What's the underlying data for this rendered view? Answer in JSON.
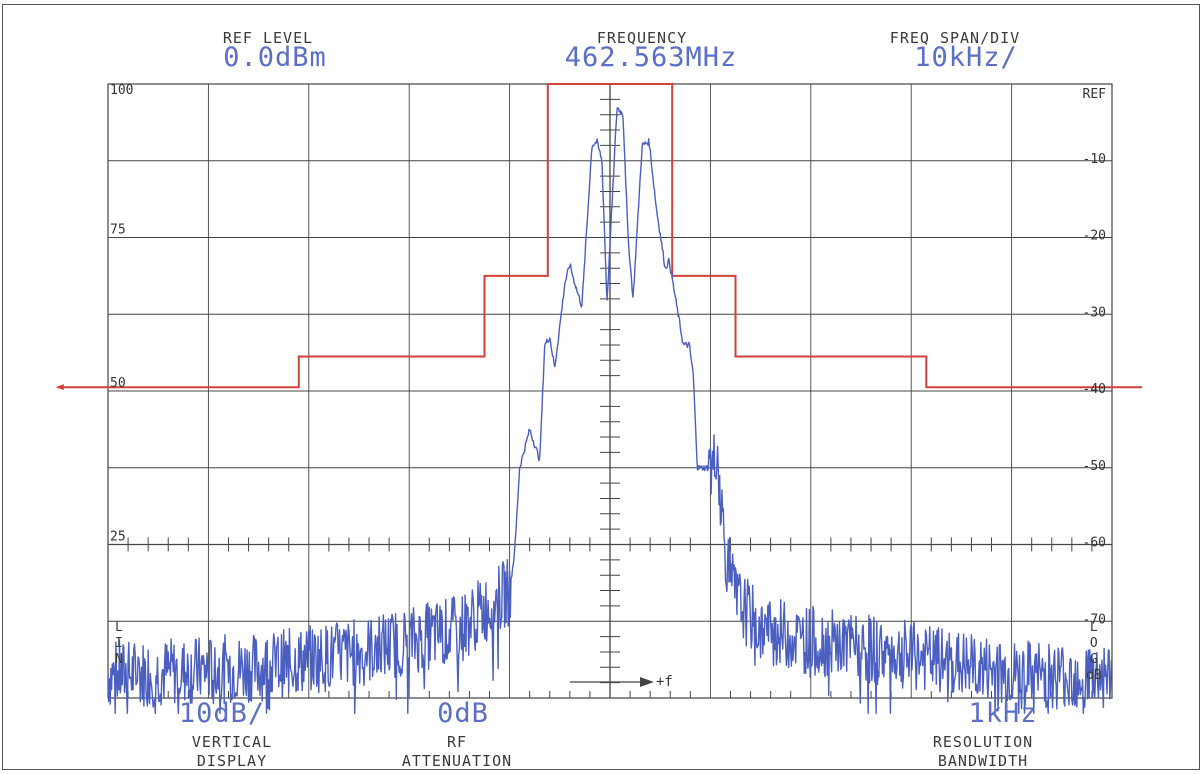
{
  "header": {
    "ref_level_label": "REF LEVEL",
    "ref_level_value": "0.0dBm",
    "frequency_label": "FREQUENCY",
    "frequency_value": "462.563MHz",
    "span_label": "FREQ SPAN/DIV",
    "span_value": "10kHz/"
  },
  "footer": {
    "vertical_value": "10dB/",
    "vertical_label_1": "VERTICAL",
    "vertical_label_2": "DISPLAY",
    "rf_value": "0dB",
    "rf_label_1": "RF",
    "rf_label_2": "ATTENUATION",
    "rbw_value": "1kHz",
    "rbw_label_1": "RESOLUTION",
    "rbw_label_2": "BANDWIDTH"
  },
  "side_markers": {
    "left_lin": [
      "L",
      "I",
      "N"
    ],
    "right_log": [
      "L",
      "O",
      "G",
      "dB"
    ]
  },
  "freq_axis_label": "+f",
  "colors": {
    "trace": "#4a5fc0",
    "mask": "#d2403c",
    "grid": "#444444",
    "text_value": "#5b6ec8"
  },
  "chart_data": {
    "type": "line",
    "title": "",
    "x_units": "kHz offset from center frequency (10 kHz/div)",
    "xlim": [
      -50,
      50
    ],
    "y_right": {
      "tick_labels": [
        "REF",
        "-10",
        "-20",
        "-30",
        "-40",
        "-50",
        "-60",
        "-70"
      ],
      "ylim": [
        -80,
        0
      ]
    },
    "y_left": {
      "tick_labels": [
        "100",
        "75",
        "50",
        "25"
      ],
      "ylim": [
        0,
        100
      ]
    },
    "grid": true,
    "series": [
      {
        "kind": "mask",
        "color": "#d2403c",
        "points": [
          [
            -55,
            -39.5
          ],
          [
            -31,
            -39.5
          ],
          [
            -31,
            -35.5
          ],
          [
            -12.5,
            -35.5
          ],
          [
            -12.5,
            -25
          ],
          [
            -6.2,
            -25
          ],
          [
            -6.2,
            0
          ],
          [
            6.2,
            0
          ],
          [
            6.2,
            -25
          ],
          [
            12.5,
            -25
          ],
          [
            12.5,
            -35.5
          ],
          [
            31.5,
            -35.5
          ],
          [
            31.5,
            -39.5
          ],
          [
            53,
            -39.5
          ]
        ]
      },
      {
        "kind": "trace",
        "color": "#4a5fc0",
        "envelope_points": [
          [
            -50,
            -77
          ],
          [
            -35,
            -76
          ],
          [
            -25,
            -74
          ],
          [
            -15,
            -71
          ],
          [
            -10,
            -66
          ],
          [
            -9.5,
            -61
          ],
          [
            -9,
            -50
          ],
          [
            -8,
            -45
          ],
          [
            -7,
            -49
          ],
          [
            -6.5,
            -34
          ],
          [
            -6,
            -33
          ],
          [
            -5.5,
            -37
          ],
          [
            -4.5,
            -26
          ],
          [
            -4,
            -23.5
          ],
          [
            -3.5,
            -26
          ],
          [
            -2.8,
            -29
          ],
          [
            -1.8,
            -8
          ],
          [
            -1.3,
            -7.5
          ],
          [
            -0.8,
            -10
          ],
          [
            -0.3,
            -28.5
          ],
          [
            0.7,
            -3
          ],
          [
            1.3,
            -4
          ],
          [
            1.8,
            -20
          ],
          [
            2.3,
            -28
          ],
          [
            3.2,
            -8
          ],
          [
            3.9,
            -7.5
          ],
          [
            4.6,
            -16
          ],
          [
            5.5,
            -24
          ],
          [
            5.9,
            -23
          ],
          [
            6.4,
            -27
          ],
          [
            7.3,
            -34
          ],
          [
            7.9,
            -34
          ],
          [
            8.3,
            -38
          ],
          [
            8.7,
            -50
          ],
          [
            10.3,
            -50
          ],
          [
            10.6,
            -47
          ],
          [
            11.5,
            -61
          ],
          [
            12.5,
            -67
          ],
          [
            15,
            -71
          ],
          [
            20,
            -72.5
          ],
          [
            30,
            -74.5
          ],
          [
            40,
            -77
          ],
          [
            50,
            -77
          ]
        ],
        "noise_floor_dBm": -77
      }
    ]
  }
}
